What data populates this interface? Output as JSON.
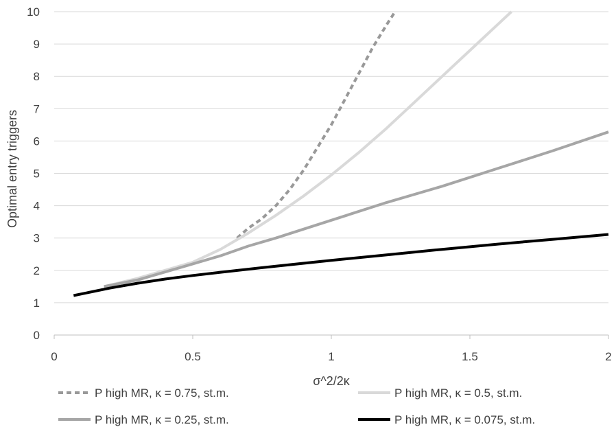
{
  "chart_data": {
    "type": "line",
    "title": "",
    "xlabel": "σ^2/2κ",
    "ylabel": "Optimal entry triggers",
    "xlim": [
      0,
      2
    ],
    "ylim": [
      0,
      10
    ],
    "x_ticks": [
      "0",
      "0.5",
      "1",
      "1.5",
      "2"
    ],
    "y_ticks": [
      "0",
      "1",
      "2",
      "3",
      "4",
      "5",
      "6",
      "7",
      "8",
      "9",
      "10"
    ],
    "grid": "horizontal",
    "legend_position": "bottom",
    "series": [
      {
        "name": "P high MR, κ = 0.75, st.m.",
        "color": "#999999",
        "style": "dashed",
        "x": [
          0.66,
          0.7,
          0.75,
          0.8,
          0.85,
          0.9,
          0.95,
          1.0,
          1.05,
          1.1,
          1.15,
          1.2,
          1.23
        ],
        "y": [
          3.0,
          3.3,
          3.6,
          4.0,
          4.5,
          5.1,
          5.8,
          6.5,
          7.3,
          8.1,
          8.9,
          9.6,
          10.0
        ]
      },
      {
        "name": "P high MR, κ = 0.5, st.m.",
        "color": "#d9d9d9",
        "style": "solid",
        "x": [
          0.18,
          0.3,
          0.4,
          0.5,
          0.6,
          0.7,
          0.8,
          0.9,
          1.0,
          1.1,
          1.2,
          1.3,
          1.4,
          1.5,
          1.6,
          1.65
        ],
        "y": [
          1.5,
          1.75,
          2.0,
          2.25,
          2.65,
          3.15,
          3.7,
          4.3,
          4.95,
          5.65,
          6.4,
          7.2,
          8.0,
          8.8,
          9.6,
          10.0
        ]
      },
      {
        "name": "P high MR, κ = 0.25, st.m.",
        "color": "#a6a6a6",
        "style": "solid",
        "x": [
          0.18,
          0.3,
          0.4,
          0.5,
          0.6,
          0.7,
          0.8,
          1.0,
          1.2,
          1.4,
          1.6,
          1.8,
          2.0
        ],
        "y": [
          1.5,
          1.7,
          1.95,
          2.2,
          2.45,
          2.75,
          3.0,
          3.55,
          4.1,
          4.6,
          5.15,
          5.7,
          6.28
        ]
      },
      {
        "name": "P high MR, κ = 0.075, st.m.",
        "color": "#000000",
        "style": "solid",
        "x": [
          0.07,
          0.2,
          0.3,
          0.4,
          0.5,
          0.6,
          0.8,
          1.0,
          1.2,
          1.4,
          1.6,
          1.8,
          2.0
        ],
        "y": [
          1.22,
          1.45,
          1.6,
          1.73,
          1.84,
          1.94,
          2.13,
          2.31,
          2.48,
          2.65,
          2.81,
          2.96,
          3.11
        ]
      }
    ]
  }
}
